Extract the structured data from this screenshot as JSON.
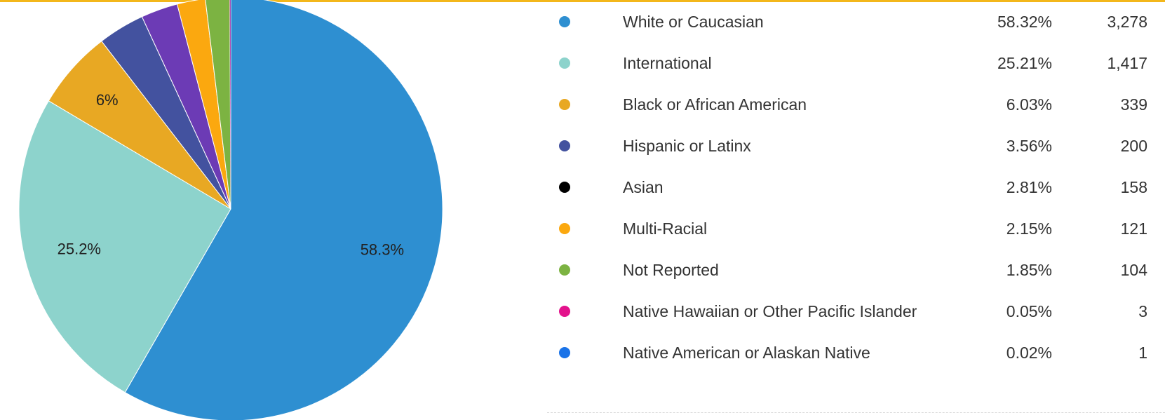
{
  "colors": {
    "top_rule": "#f3b71b"
  },
  "chart_data": {
    "type": "pie",
    "title": "",
    "slices": [
      {
        "label": "White or Caucasian",
        "percent_text": "58.32%",
        "count_text": "3,278",
        "value": 3278,
        "color": "#2e8fd1",
        "slice_label": "58.3%"
      },
      {
        "label": "International",
        "percent_text": "25.21%",
        "count_text": "1,417",
        "value": 1417,
        "color": "#8dd3cc",
        "slice_label": "25.2%"
      },
      {
        "label": "Black or African American",
        "percent_text": "6.03%",
        "count_text": "339",
        "value": 339,
        "color": "#e8a823",
        "slice_label": "6%"
      },
      {
        "label": "Hispanic or Latinx",
        "percent_text": "3.56%",
        "count_text": "200",
        "value": 200,
        "color": "#43529f",
        "slice_label": ""
      },
      {
        "label": "Asian",
        "percent_text": "2.81%",
        "count_text": "158",
        "value": 158,
        "color": "#6c3bb5",
        "legend_color": "#000000",
        "slice_label": ""
      },
      {
        "label": "Multi-Racial",
        "percent_text": "2.15%",
        "count_text": "121",
        "value": 121,
        "color": "#fba80f",
        "slice_label": ""
      },
      {
        "label": "Not Reported",
        "percent_text": "1.85%",
        "count_text": "104",
        "value": 104,
        "color": "#7cb342",
        "slice_label": ""
      },
      {
        "label": "Native Hawaiian or Other Pacific Islander",
        "percent_text": "0.05%",
        "count_text": "3",
        "value": 3,
        "color": "#e3128c",
        "slice_label": ""
      },
      {
        "label": "Native American or Alaskan Native",
        "percent_text": "0.02%",
        "count_text": "1",
        "value": 1,
        "color": "#1a73e8",
        "slice_label": ""
      }
    ]
  }
}
